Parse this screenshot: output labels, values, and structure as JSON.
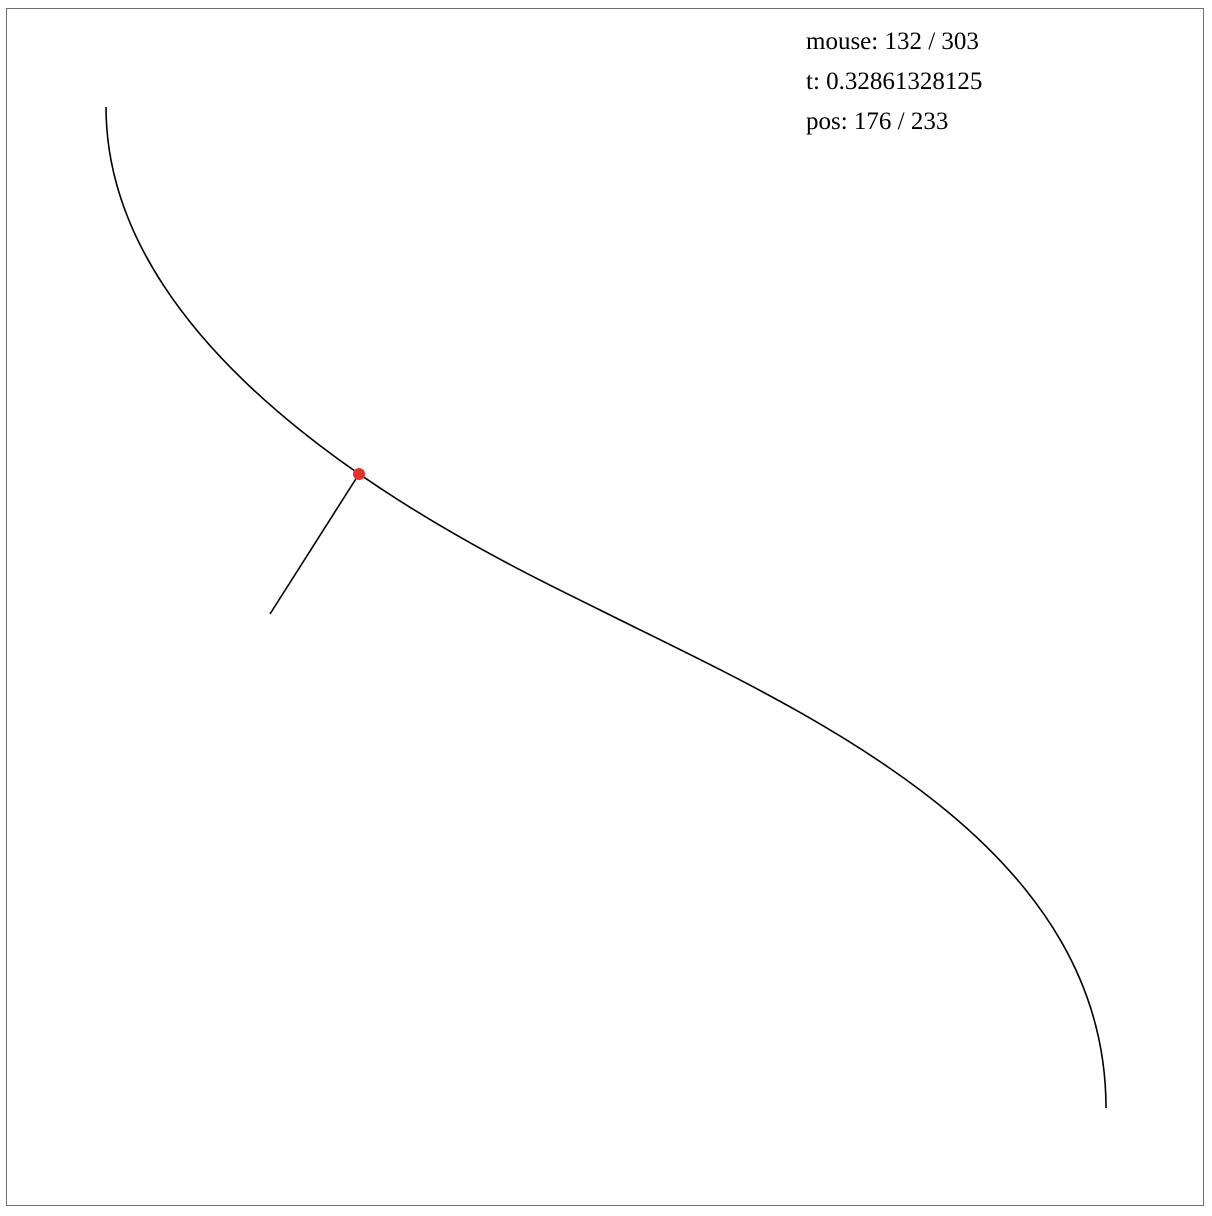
{
  "readout": {
    "mouse": "mouse: 132 / 303",
    "t": "t: 0.32861328125",
    "pos": "pos: 176 / 233"
  },
  "colors": {
    "curve": "#000000",
    "marker": "#e8302a",
    "border": "#6f6f6f"
  }
}
